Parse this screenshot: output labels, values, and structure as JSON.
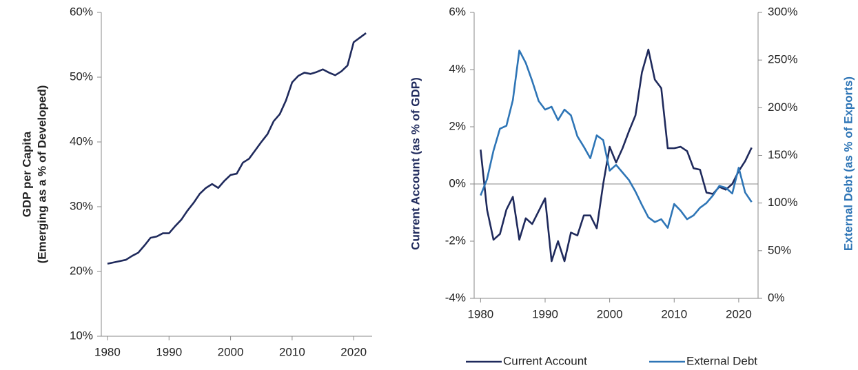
{
  "chart_data": [
    {
      "type": "line",
      "ylabel": [
        "GDP per Capita",
        "(Emerging as a % of Developed)"
      ],
      "x": [
        1980,
        1981,
        1982,
        1983,
        1984,
        1985,
        1986,
        1987,
        1988,
        1989,
        1990,
        1991,
        1992,
        1993,
        1994,
        1995,
        1996,
        1997,
        1998,
        1999,
        2000,
        2001,
        2002,
        2003,
        2004,
        2005,
        2006,
        2007,
        2008,
        2009,
        2010,
        2011,
        2012,
        2013,
        2014,
        2015,
        2016,
        2017,
        2018,
        2019,
        2020,
        2021,
        2022
      ],
      "series": [
        {
          "name": "GDP per Capita",
          "color": "#1f2a5c",
          "values": [
            21.2,
            21.4,
            21.6,
            21.8,
            22.4,
            22.9,
            24.0,
            25.2,
            25.4,
            25.9,
            25.9,
            27.0,
            28.0,
            29.4,
            30.6,
            32.0,
            32.9,
            33.5,
            32.9,
            34.0,
            34.9,
            35.1,
            36.8,
            37.4,
            38.7,
            40.0,
            41.2,
            43.2,
            44.3,
            46.4,
            49.2,
            50.2,
            50.7,
            50.5,
            50.8,
            51.2,
            50.7,
            50.3,
            50.9,
            51.8,
            55.4,
            56.1,
            56.8
          ]
        }
      ],
      "xlim": [
        1979,
        2023
      ],
      "xticks": [
        1980,
        1990,
        2000,
        2010,
        2020
      ],
      "ylim": [
        10,
        60
      ],
      "yticks": [
        {
          "value": 10,
          "label": "10%"
        },
        {
          "value": 20,
          "label": "20%"
        },
        {
          "value": 30,
          "label": "30%"
        },
        {
          "value": 40,
          "label": "40%"
        },
        {
          "value": 50,
          "label": "50%"
        },
        {
          "value": 60,
          "label": "60%"
        }
      ],
      "grid": false
    },
    {
      "type": "line",
      "ylabel": "Current Account  (as % of GDP)",
      "y2label": "External Debt (as % of Exports)",
      "x": [
        1980,
        1981,
        1982,
        1983,
        1984,
        1985,
        1986,
        1987,
        1988,
        1989,
        1990,
        1991,
        1992,
        1993,
        1994,
        1995,
        1996,
        1997,
        1998,
        1999,
        2000,
        2001,
        2002,
        2003,
        2004,
        2005,
        2006,
        2007,
        2008,
        2009,
        2010,
        2011,
        2012,
        2013,
        2014,
        2015,
        2016,
        2017,
        2018,
        2019,
        2020,
        2021,
        2022
      ],
      "series": [
        {
          "name": "Current Account",
          "color": "#1f2a5c",
          "values": [
            1.2,
            -0.9,
            -1.95,
            -1.75,
            -0.9,
            -0.45,
            -1.95,
            -1.2,
            -1.4,
            -0.95,
            -0.5,
            -2.7,
            -2.0,
            -2.7,
            -1.7,
            -1.8,
            -1.1,
            -1.1,
            -1.55,
            0.0,
            1.3,
            0.75,
            1.25,
            1.85,
            2.4,
            3.9,
            4.7,
            3.65,
            3.35,
            1.25,
            1.25,
            1.3,
            1.15,
            0.55,
            0.5,
            -0.3,
            -0.35,
            -0.1,
            -0.2,
            0.0,
            0.45,
            0.8,
            1.27
          ]
        },
        {
          "name": "External Debt",
          "color": "#2e75b6",
          "axis": "y2",
          "values": [
            108,
            125,
            155,
            178,
            181,
            208,
            260,
            247,
            228,
            207,
            198,
            201,
            187,
            198,
            192,
            170,
            159,
            147,
            171,
            166,
            134,
            140,
            132,
            124,
            112,
            98,
            85,
            80,
            83,
            74,
            99,
            92,
            83,
            87,
            95,
            100,
            108,
            118,
            116,
            110,
            137,
            111,
            101
          ]
        }
      ],
      "xlim": [
        1979,
        2023
      ],
      "xticks": [
        1980,
        1990,
        2000,
        2010,
        2020
      ],
      "ylim": [
        -4,
        6
      ],
      "yticks": [
        {
          "value": -4,
          "label": "-4%"
        },
        {
          "value": -2,
          "label": "-2%"
        },
        {
          "value": 0,
          "label": "0%"
        },
        {
          "value": 2,
          "label": "2%"
        },
        {
          "value": 4,
          "label": "4%"
        },
        {
          "value": 6,
          "label": "6%"
        }
      ],
      "y2lim": [
        0,
        300
      ],
      "y2ticks": [
        {
          "value": 0,
          "label": "0%"
        },
        {
          "value": 50,
          "label": "50%"
        },
        {
          "value": 100,
          "label": "100%"
        },
        {
          "value": 150,
          "label": "150%"
        },
        {
          "value": 200,
          "label": "200%"
        },
        {
          "value": 250,
          "label": "250%"
        },
        {
          "value": 300,
          "label": "300%"
        }
      ],
      "zero_line": true,
      "legend": "bottom",
      "grid": false
    }
  ]
}
